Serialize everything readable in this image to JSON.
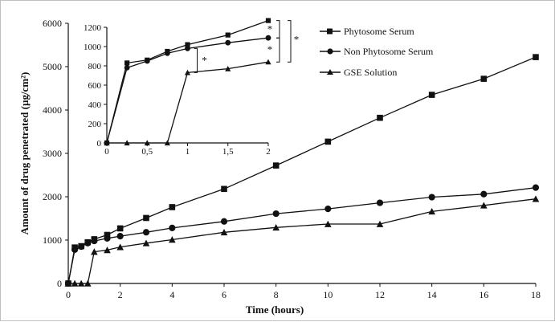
{
  "chart_data": {
    "type": "line",
    "xlabel": "Time (hours)",
    "ylabel": "Amount of drug penetrated (µg/cm²)",
    "xlim": [
      0,
      18
    ],
    "ylim": [
      0,
      6000
    ],
    "xticks": [
      "0",
      "2",
      "4",
      "6",
      "8",
      "10",
      "12",
      "14",
      "16",
      "18"
    ],
    "yticks": [
      "0",
      "1000",
      "2000",
      "3000",
      "4000",
      "5000",
      "6000"
    ],
    "grid": false,
    "legend_position": "top-right",
    "series": [
      {
        "name": "Phytosome Serum",
        "marker": "square",
        "x": [
          0,
          0.25,
          0.5,
          0.75,
          1,
          1.5,
          2,
          3,
          4,
          6,
          8,
          10,
          12,
          14,
          16,
          18
        ],
        "y": [
          0,
          830,
          860,
          950,
          1020,
          1120,
          1270,
          1510,
          1760,
          2180,
          2720,
          3270,
          3820,
          4350,
          4720,
          5220
        ]
      },
      {
        "name": "Non Phytosome Serum",
        "marker": "circle",
        "x": [
          0,
          0.25,
          0.5,
          0.75,
          1,
          1.5,
          2,
          3,
          4,
          6,
          8,
          10,
          12,
          14,
          16,
          18
        ],
        "y": [
          0,
          780,
          850,
          930,
          980,
          1040,
          1090,
          1180,
          1280,
          1430,
          1610,
          1720,
          1860,
          1990,
          2060,
          2210
        ]
      },
      {
        "name": "GSE Solution",
        "marker": "triangle",
        "x": [
          0,
          0.25,
          0.5,
          0.75,
          1,
          1.5,
          2,
          3,
          4,
          6,
          8,
          10,
          12,
          14,
          16,
          18
        ],
        "y": [
          0,
          0,
          0,
          0,
          730,
          770,
          840,
          930,
          1010,
          1180,
          1290,
          1370,
          1370,
          1660,
          1800,
          1950
        ]
      }
    ],
    "inset": {
      "xlim": [
        0,
        2
      ],
      "ylim": [
        0,
        1200
      ],
      "xticks": [
        "0",
        "0,5",
        "1",
        "1,5",
        "2"
      ],
      "yticks": [
        "0",
        "200",
        "400",
        "600",
        "800",
        "1000",
        "1200"
      ],
      "significance_marks": [
        "*",
        "*",
        "*",
        "*"
      ]
    }
  }
}
